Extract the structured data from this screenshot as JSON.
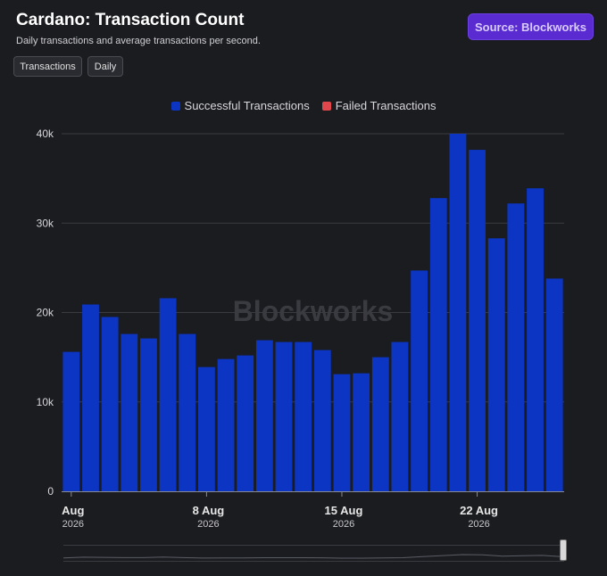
{
  "header": {
    "title": "Cardano: Transaction Count",
    "subtitle": "Daily transactions and average transactions per second.",
    "source_label": "Source: Blockworks"
  },
  "controls": {
    "metric_label": "Transactions",
    "interval_label": "Daily"
  },
  "watermark": "Blockworks",
  "colors": {
    "successful": "#0b35c2",
    "failed": "#e0474c",
    "background": "#1b1c20",
    "source_button": "#5a2bd0"
  },
  "chart_data": {
    "type": "bar",
    "title": "Cardano: Transaction Count",
    "subtitle": "Daily transactions and average transactions per second.",
    "x": [
      "2026-08-01",
      "2026-08-02",
      "2026-08-03",
      "2026-08-04",
      "2026-08-05",
      "2026-08-06",
      "2026-08-07",
      "2026-08-08",
      "2026-08-09",
      "2026-08-10",
      "2026-08-11",
      "2026-08-12",
      "2026-08-13",
      "2026-08-14",
      "2026-08-15",
      "2026-08-16",
      "2026-08-17",
      "2026-08-18",
      "2026-08-19",
      "2026-08-20",
      "2026-08-21",
      "2026-08-22",
      "2026-08-23",
      "2026-08-24",
      "2026-08-25",
      "2026-08-26"
    ],
    "series": [
      {
        "name": "Successful Transactions",
        "values": [
          15600,
          20900,
          19500,
          17600,
          17100,
          21600,
          17600,
          13900,
          14800,
          15200,
          16900,
          16700,
          16700,
          15800,
          13100,
          13200,
          15000,
          16700,
          24700,
          32800,
          40000,
          38200,
          28300,
          32200,
          33900,
          23800
        ]
      },
      {
        "name": "Failed Transactions",
        "values": [
          0,
          0,
          0,
          0,
          0,
          0,
          0,
          0,
          0,
          0,
          0,
          0,
          0,
          0,
          0,
          0,
          0,
          0,
          0,
          0,
          0,
          0,
          0,
          0,
          0,
          0
        ]
      }
    ],
    "x_ticks": [
      {
        "date": "2026-08-01",
        "label": "Aug",
        "sublabel": "2026"
      },
      {
        "date": "2026-08-08",
        "label": "8 Aug",
        "sublabel": "2026"
      },
      {
        "date": "2026-08-15",
        "label": "15 Aug",
        "sublabel": "2026"
      },
      {
        "date": "2026-08-22",
        "label": "22 Aug",
        "sublabel": "2026"
      }
    ],
    "y_ticks": [
      0,
      10000,
      20000,
      30000,
      40000
    ],
    "y_tick_labels": [
      "0",
      "10k",
      "20k",
      "30k",
      "40k"
    ],
    "ylim": [
      0,
      40000
    ],
    "grid": true,
    "legend": "top-center"
  }
}
